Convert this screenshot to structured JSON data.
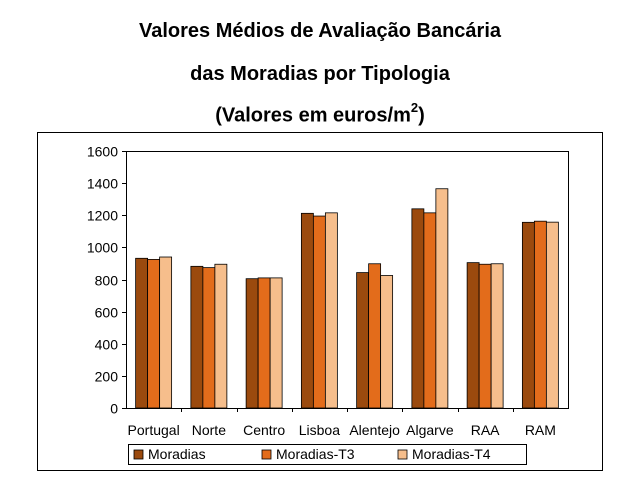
{
  "chart_data": {
    "type": "bar",
    "title_lines": [
      "Valores Médios de Avaliação Bancária",
      "das Moradias por Tipologia"
    ],
    "subtitle_main": "(Valores em euros/m",
    "subtitle_sup": "2",
    "subtitle_end": ")",
    "categories": [
      "Portugal",
      "Norte",
      "Centro",
      "Lisboa",
      "Alentejo",
      "Algarve",
      "RAA",
      "RAM"
    ],
    "series": [
      {
        "name": "Moradias",
        "color": "#9b4a0e",
        "values": [
          932,
          882,
          805,
          1212,
          843,
          1240,
          905,
          1156
        ]
      },
      {
        "name": "Moradias-T3",
        "color": "#e36c1b",
        "values": [
          925,
          874,
          810,
          1195,
          898,
          1215,
          895,
          1163
        ]
      },
      {
        "name": "Moradias-T4",
        "color": "#f6be8c",
        "values": [
          940,
          895,
          810,
          1215,
          825,
          1365,
          898,
          1157
        ]
      }
    ],
    "y_ticks": [
      0,
      200,
      400,
      600,
      800,
      1000,
      1200,
      1400,
      1600
    ],
    "ylim": [
      0,
      1600
    ],
    "grid": false,
    "legend_position": "bottom"
  }
}
